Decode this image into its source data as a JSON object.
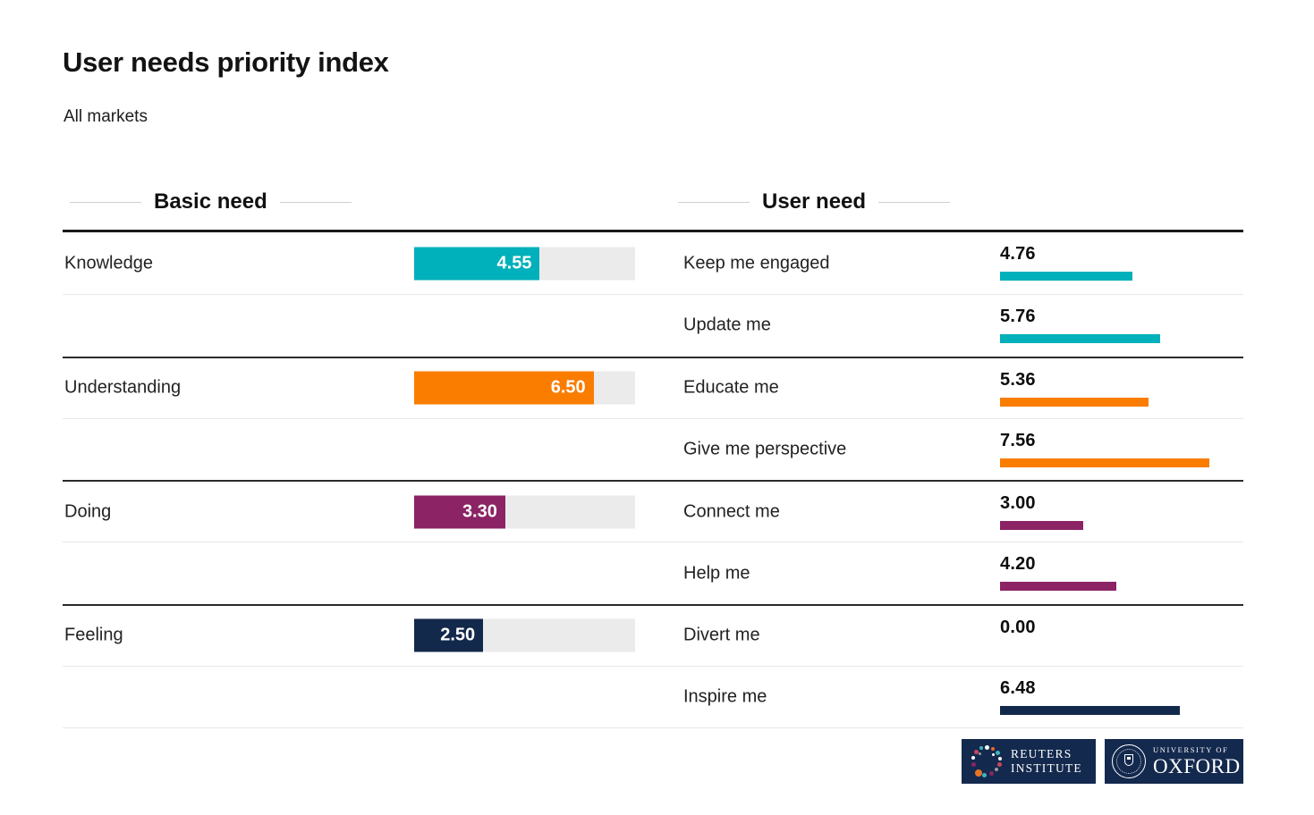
{
  "header": {
    "title": "User needs priority index",
    "subtitle": "All markets"
  },
  "columns": {
    "basic": "Basic need",
    "user": "User need"
  },
  "chart_data": {
    "type": "bar",
    "title": "User needs priority index",
    "subtitle": "All markets",
    "xlim": [
      0,
      8
    ],
    "legend_position": "none",
    "grid": false,
    "groups": [
      {
        "basic": {
          "label": "Knowledge",
          "value": 4.55,
          "color": "#00b0ba"
        },
        "user_needs": [
          {
            "label": "Keep me engaged",
            "value": 4.76,
            "color": "#00b0ba"
          },
          {
            "label": "Update me",
            "value": 5.76,
            "color": "#00b0ba"
          }
        ]
      },
      {
        "basic": {
          "label": "Understanding",
          "value": 6.5,
          "color": "#fa7d00"
        },
        "user_needs": [
          {
            "label": "Educate me",
            "value": 5.36,
            "color": "#fa7d00"
          },
          {
            "label": "Give me perspective",
            "value": 7.56,
            "color": "#fa7d00"
          }
        ]
      },
      {
        "basic": {
          "label": "Doing",
          "value": 3.3,
          "color": "#8b2365"
        },
        "user_needs": [
          {
            "label": "Connect me",
            "value": 3.0,
            "color": "#8b2365"
          },
          {
            "label": "Help me",
            "value": 4.2,
            "color": "#8b2365"
          }
        ]
      },
      {
        "basic": {
          "label": "Feeling",
          "value": 2.5,
          "color": "#13294b"
        },
        "user_needs": [
          {
            "label": "Divert me",
            "value": 0.0,
            "color": "#13294b"
          },
          {
            "label": "Inspire me",
            "value": 6.48,
            "color": "#13294b"
          }
        ]
      }
    ]
  },
  "colors": {
    "track": "#ebebeb",
    "logo_bg": "#14294e"
  },
  "logos": {
    "reuters": {
      "line1": "REUTERS",
      "line2": "INSTITUTE"
    },
    "oxford": {
      "line1": "UNIVERSITY OF",
      "line2": "OXFORD"
    }
  }
}
